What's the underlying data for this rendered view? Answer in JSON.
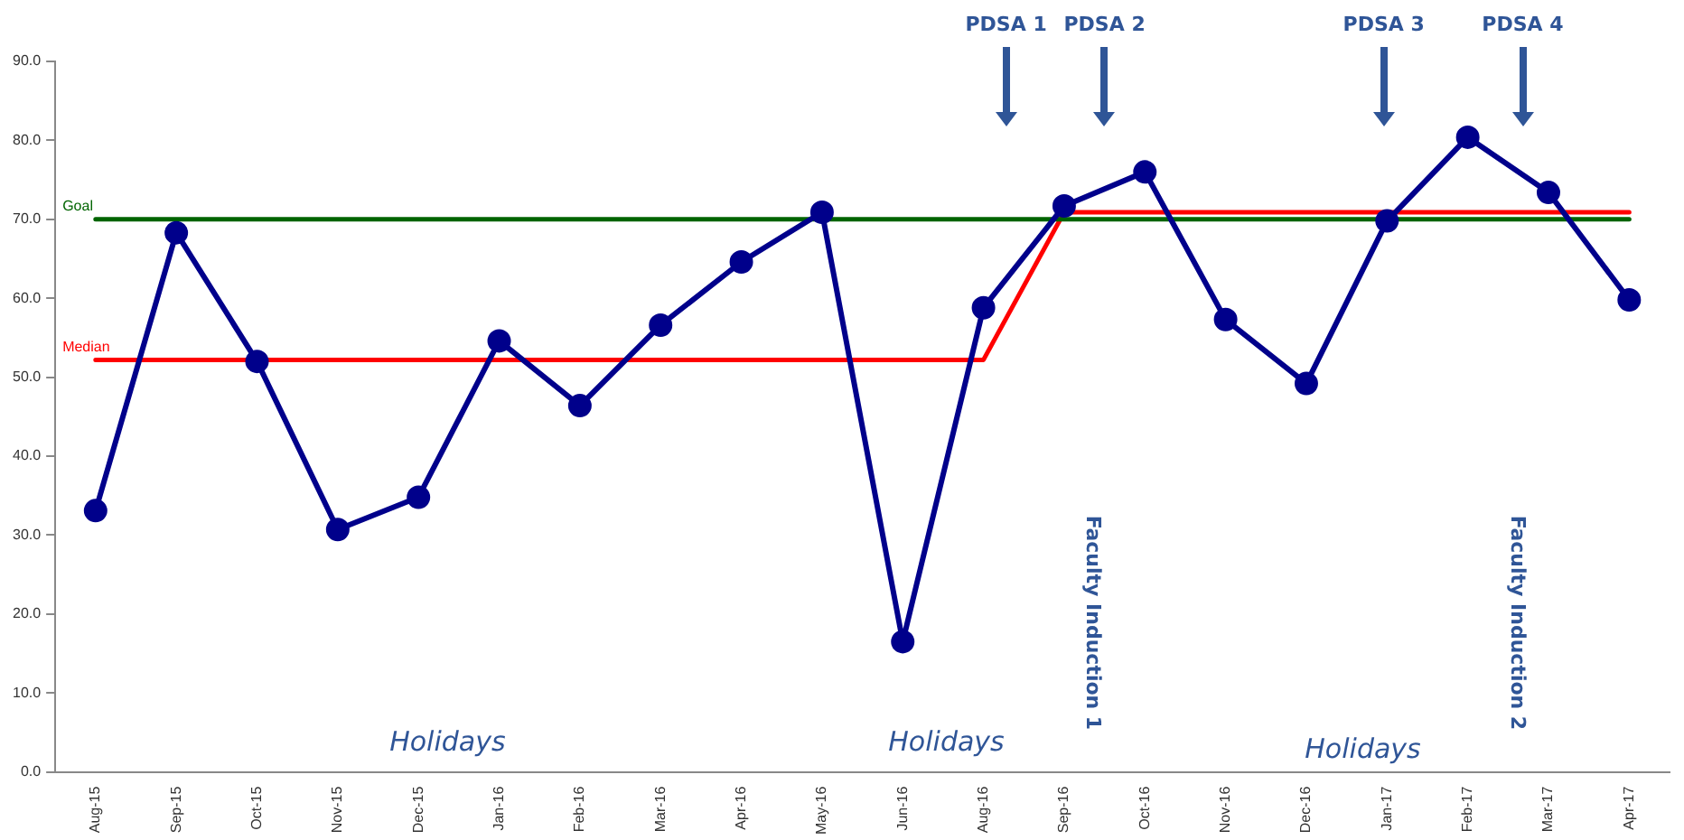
{
  "chart_data": {
    "type": "line",
    "categories": [
      "Aug-15",
      "Sep-15",
      "Oct-15",
      "Nov-15",
      "Dec-15",
      "Jan-16",
      "Feb-16",
      "Mar-16",
      "Apr-16",
      "May-16",
      "Jun-16",
      "Aug-16",
      "Sep-16",
      "Oct-16",
      "Nov-16",
      "Dec-16",
      "Jan-17",
      "Feb-17",
      "Mar-17",
      "Apr-17"
    ],
    "series": [
      {
        "color": "#00008b",
        "marker": "circle",
        "values": [
          33.1,
          68.3,
          52.0,
          30.7,
          34.8,
          54.6,
          46.4,
          56.6,
          64.6,
          70.9,
          16.5,
          58.8,
          71.7,
          76.0,
          57.3,
          49.2,
          69.8,
          80.4,
          73.4,
          59.8
        ]
      },
      {
        "name": "Goal",
        "color": "#006400",
        "marker": "none",
        "values": [
          70,
          70,
          70,
          70,
          70,
          70,
          70,
          70,
          70,
          70,
          70,
          70,
          70,
          70,
          70,
          70,
          70,
          70,
          70,
          70
        ]
      },
      {
        "name": "Median",
        "color": "#ff0000",
        "marker": "none",
        "values": [
          52.2,
          52.2,
          52.2,
          52.2,
          52.2,
          52.2,
          52.2,
          52.2,
          52.2,
          52.2,
          52.2,
          52.2,
          70.9,
          70.9,
          70.9,
          70.9,
          70.9,
          70.9,
          70.9,
          70.9
        ]
      }
    ],
    "ylim": [
      0,
      90
    ],
    "yticks": [
      {
        "value": 0,
        "label": "0.0"
      },
      {
        "value": 10,
        "label": "10.0"
      },
      {
        "value": 20,
        "label": "20.0"
      },
      {
        "value": 30,
        "label": "30.0"
      },
      {
        "value": 40,
        "label": "40.0"
      },
      {
        "value": 50,
        "label": "50.0"
      },
      {
        "value": 60,
        "label": "60.0"
      },
      {
        "value": 70,
        "label": "70.0"
      },
      {
        "value": 80,
        "label": "80.0"
      },
      {
        "value": 90,
        "label": "90.0"
      }
    ],
    "grid": false,
    "legend": false,
    "annotations": [
      "PDSA 1",
      "PDSA 2",
      "PDSA 3",
      "PDSA 4",
      "Faculty Induction 1",
      "Faculty Induction 2",
      "Holidays",
      "Holidays",
      "Holidays"
    ]
  }
}
